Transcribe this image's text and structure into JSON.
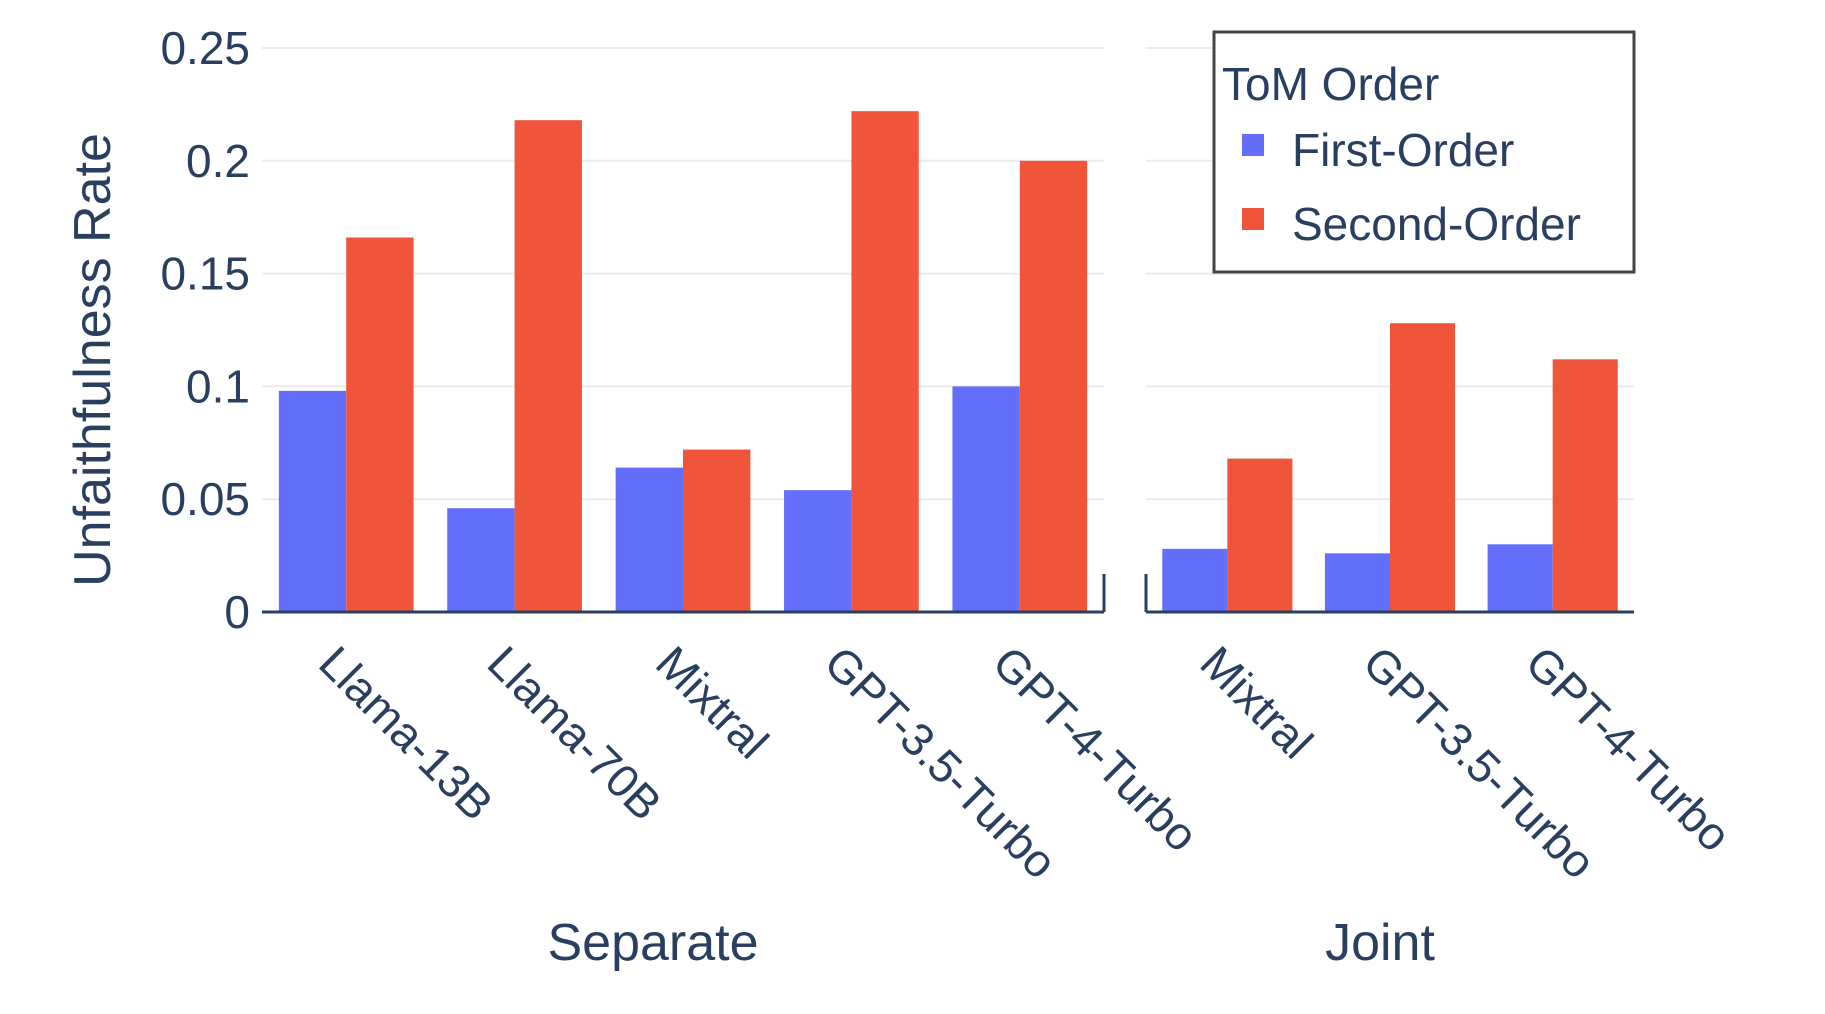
{
  "chart_data": {
    "type": "bar",
    "ylabel": "Unfaithfulness Rate",
    "ylim": [
      0,
      0.25
    ],
    "yticks": [
      {
        "value": 0,
        "label": "0"
      },
      {
        "value": 0.05,
        "label": "0.05"
      },
      {
        "value": 0.1,
        "label": "0.1"
      },
      {
        "value": 0.15,
        "label": "0.15"
      },
      {
        "value": 0.2,
        "label": "0.2"
      },
      {
        "value": 0.25,
        "label": "0.25"
      }
    ],
    "grid": true,
    "legend": {
      "title": "ToM Order",
      "placement": "top-right",
      "entries": [
        "First-Order",
        "Second-Order"
      ]
    },
    "series_colors": [
      "#636efa",
      "#ef553b"
    ],
    "panels": [
      {
        "xlabel": "Separate",
        "categories": [
          "Llama-13B",
          "Llama-70B",
          "Mixtral",
          "GPT-3.5-Turbo",
          "GPT-4-Turbo"
        ],
        "series": [
          {
            "name": "First-Order",
            "values": [
              0.098,
              0.046,
              0.064,
              0.054,
              0.1
            ]
          },
          {
            "name": "Second-Order",
            "values": [
              0.166,
              0.218,
              0.072,
              0.222,
              0.2
            ]
          }
        ]
      },
      {
        "xlabel": "Joint",
        "categories": [
          "Mixtral",
          "GPT-3.5-Turbo",
          "GPT-4-Turbo"
        ],
        "series": [
          {
            "name": "First-Order",
            "values": [
              0.028,
              0.026,
              0.03
            ]
          },
          {
            "name": "Second-Order",
            "values": [
              0.068,
              0.128,
              0.112
            ]
          }
        ]
      }
    ]
  }
}
